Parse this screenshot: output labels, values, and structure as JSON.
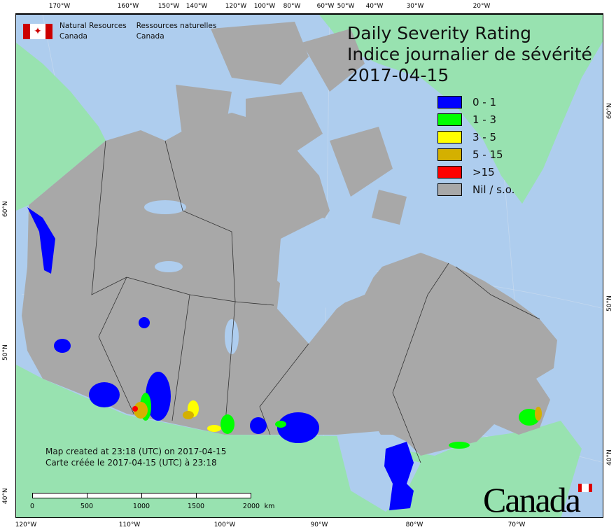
{
  "header": {
    "org_en_line1": "Natural Resources",
    "org_en_line2": "Canada",
    "org_fr_line1": "Ressources naturelles",
    "org_fr_line2": "Canada",
    "flag_icon": "canada-flag-icon"
  },
  "title": {
    "en": "Daily Severity Rating",
    "fr": "Indice journalier de sévérité",
    "date": "2017-04-15"
  },
  "legend": [
    {
      "label": "0 - 1",
      "color": "#0000ff"
    },
    {
      "label": "1 - 3",
      "color": "#00ff00"
    },
    {
      "label": "3 - 5",
      "color": "#ffff00"
    },
    {
      "label": "5 - 15",
      "color": "#d4b000"
    },
    {
      "label": ">15",
      "color": "#ff0000"
    },
    {
      "label": "Nil / s.o.",
      "color": "#a8a8a8"
    }
  ],
  "colors": {
    "ocean": "#aecdee",
    "foreign_land": "#98e2b0",
    "canada_nil": "#a8a8a8"
  },
  "credit": {
    "en": "Map created at 23:18 (UTC) on 2017-04-15",
    "fr": "Carte créée le 2017-04-15 (UTC) à 23:18"
  },
  "scale_bar": {
    "labels": [
      "0",
      "500",
      "1000",
      "1500",
      "2000"
    ],
    "unit": "km"
  },
  "axes": {
    "top": [
      "170°W",
      "160°W",
      "150°W",
      "140°W",
      "120°W",
      "100°W",
      "80°W",
      "60°W",
      "50°W",
      "40°W",
      "30°W",
      "20°W"
    ],
    "bottom": [
      "120°W",
      "110°W",
      "100°W",
      "90°W",
      "80°W",
      "70°W"
    ],
    "left": [
      "60°N",
      "50°N",
      "40°N"
    ],
    "right": [
      "60°N",
      "50°N",
      "40°N"
    ]
  },
  "wordmark": "Canada"
}
